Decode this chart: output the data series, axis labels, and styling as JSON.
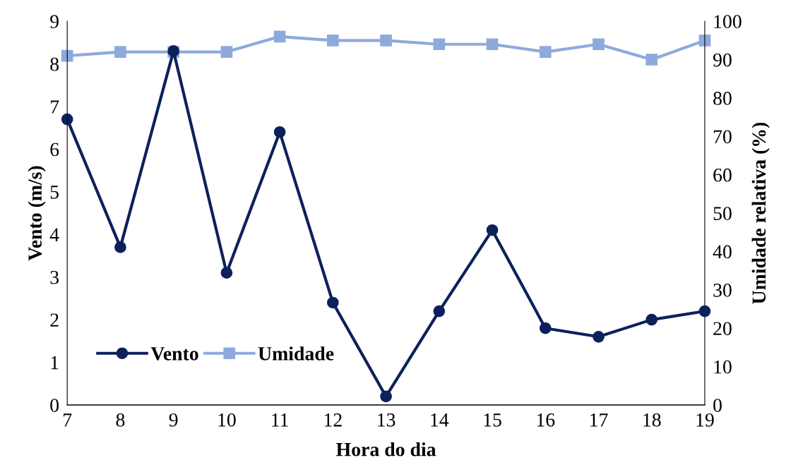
{
  "chart_data": {
    "type": "line",
    "xlabel": "Hora do dia",
    "ylabel": "Vento (m/s)",
    "y2label": "Umidade relativa (%)",
    "x": [
      7,
      8,
      9,
      10,
      11,
      12,
      13,
      14,
      15,
      16,
      17,
      18,
      19
    ],
    "xlim": [
      7,
      19
    ],
    "xticks": [
      7,
      8,
      9,
      10,
      11,
      12,
      13,
      14,
      15,
      16,
      17,
      18,
      19
    ],
    "ylim": [
      0,
      9
    ],
    "yticks": [
      0,
      1,
      2,
      3,
      4,
      5,
      6,
      7,
      8,
      9
    ],
    "y2lim": [
      0,
      100
    ],
    "y2ticks": [
      0,
      10,
      20,
      30,
      40,
      50,
      60,
      70,
      80,
      90,
      100
    ],
    "series": [
      {
        "name": "Vento",
        "color": "#0c215c",
        "marker": "circle",
        "values": [
          6.7,
          3.7,
          8.3,
          3.1,
          6.4,
          2.4,
          0.2,
          2.2,
          4.1,
          1.8,
          1.6,
          2.0,
          2.2
        ]
      },
      {
        "name": "Umidade",
        "color": "#8eaadc",
        "marker": "square",
        "axis": "y2",
        "values": [
          91,
          92,
          92,
          92,
          96,
          95,
          95,
          94,
          94,
          92,
          94,
          90,
          95
        ]
      }
    ],
    "legend": "bottom left",
    "grid": false,
    "line_style": "solid"
  }
}
